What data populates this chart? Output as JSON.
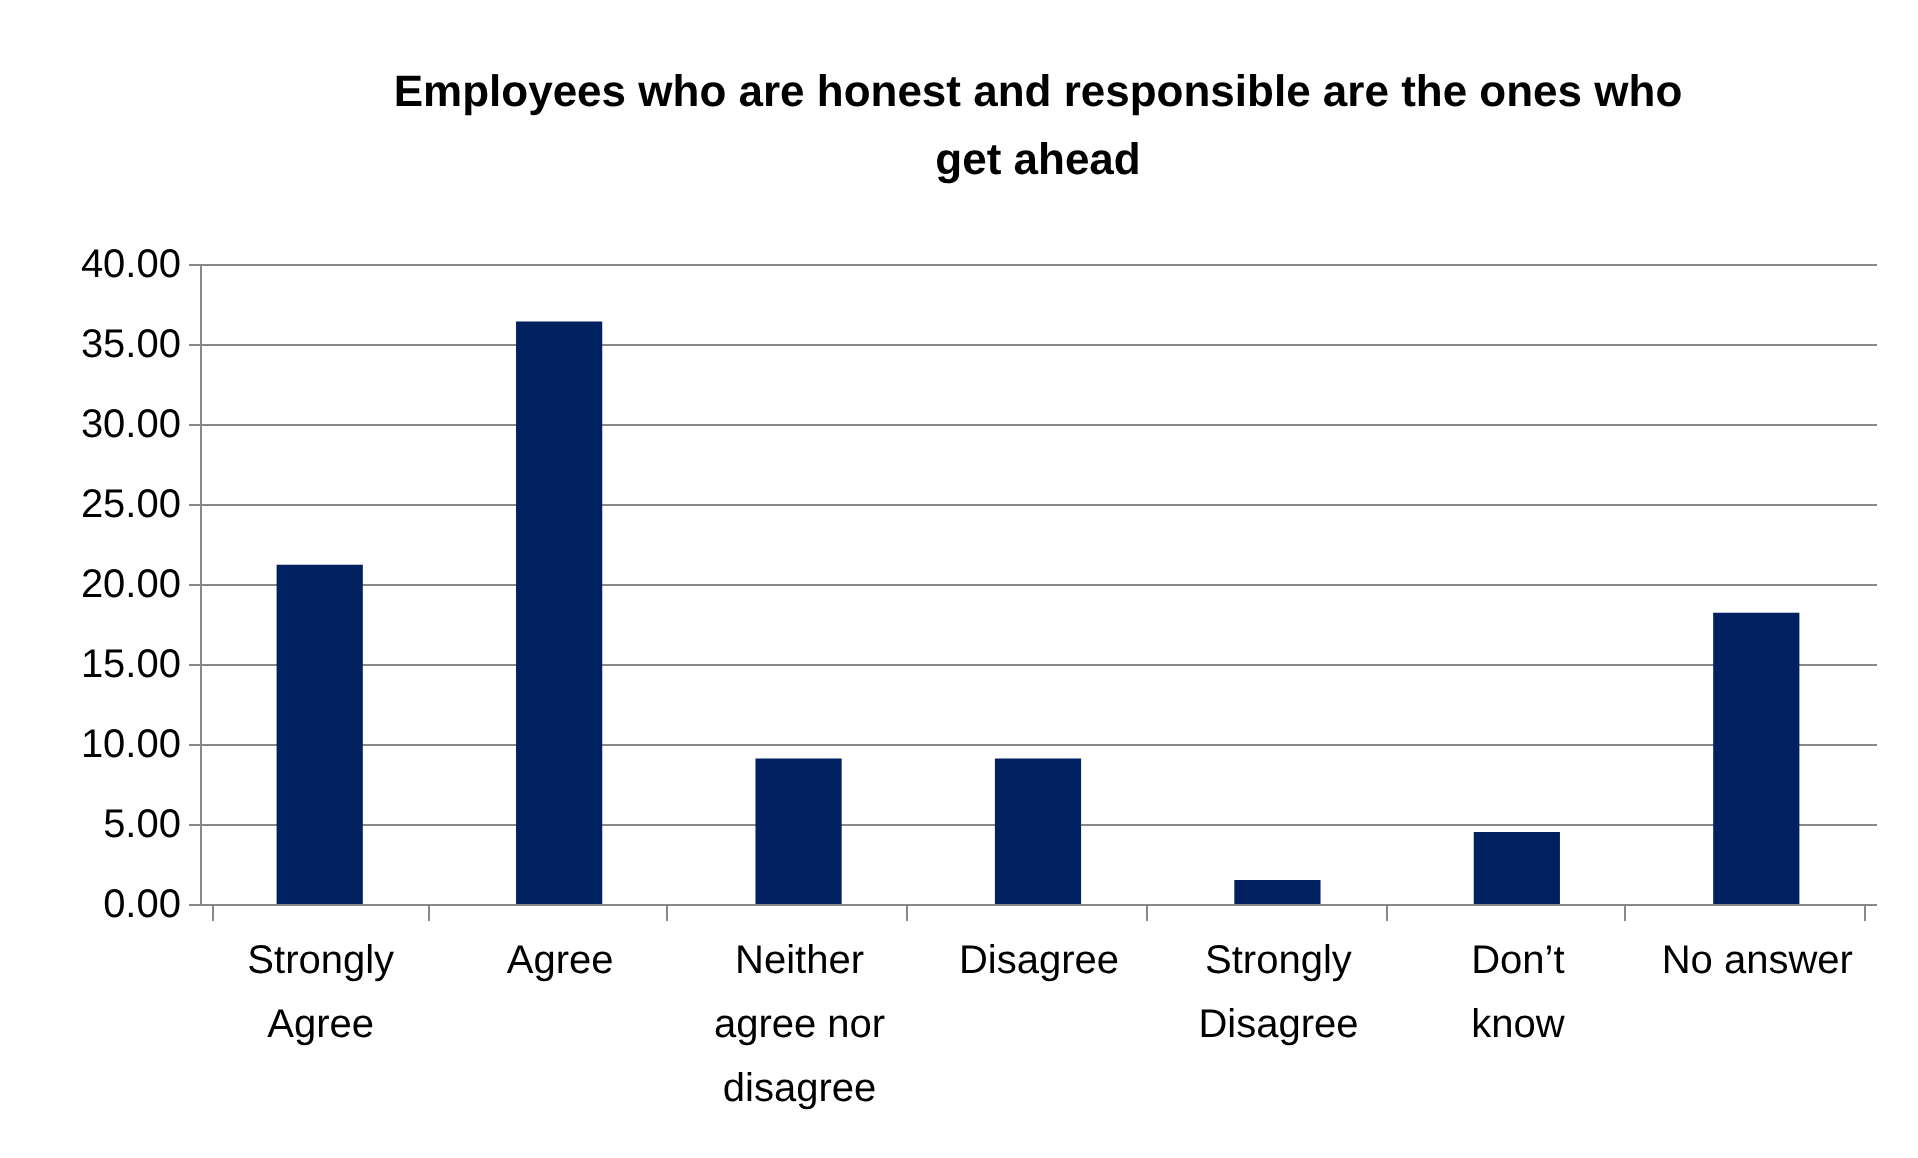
{
  "chart_data": {
    "type": "bar",
    "title": "Employees who are honest and responsible are the ones who get ahead",
    "categories": [
      "Strongly Agree",
      "Agree",
      "Neither agree nor disagree",
      "Disagree",
      "Strongly Disagree",
      "Don’t know",
      "No answer"
    ],
    "values": [
      21.2,
      36.4,
      9.1,
      9.1,
      1.5,
      4.5,
      18.2
    ],
    "color": "#002060",
    "ylim": [
      0,
      40
    ],
    "yticks": [
      {
        "value": 0,
        "label": "0.00"
      },
      {
        "value": 5,
        "label": "5.00"
      },
      {
        "value": 10,
        "label": "10.00"
      },
      {
        "value": 15,
        "label": "15.00"
      },
      {
        "value": 20,
        "label": "20.00"
      },
      {
        "value": 25,
        "label": "25.00"
      },
      {
        "value": 30,
        "label": "30.00"
      },
      {
        "value": 35,
        "label": "35.00"
      },
      {
        "value": 40,
        "label": "40.00"
      }
    ],
    "grid": true
  }
}
